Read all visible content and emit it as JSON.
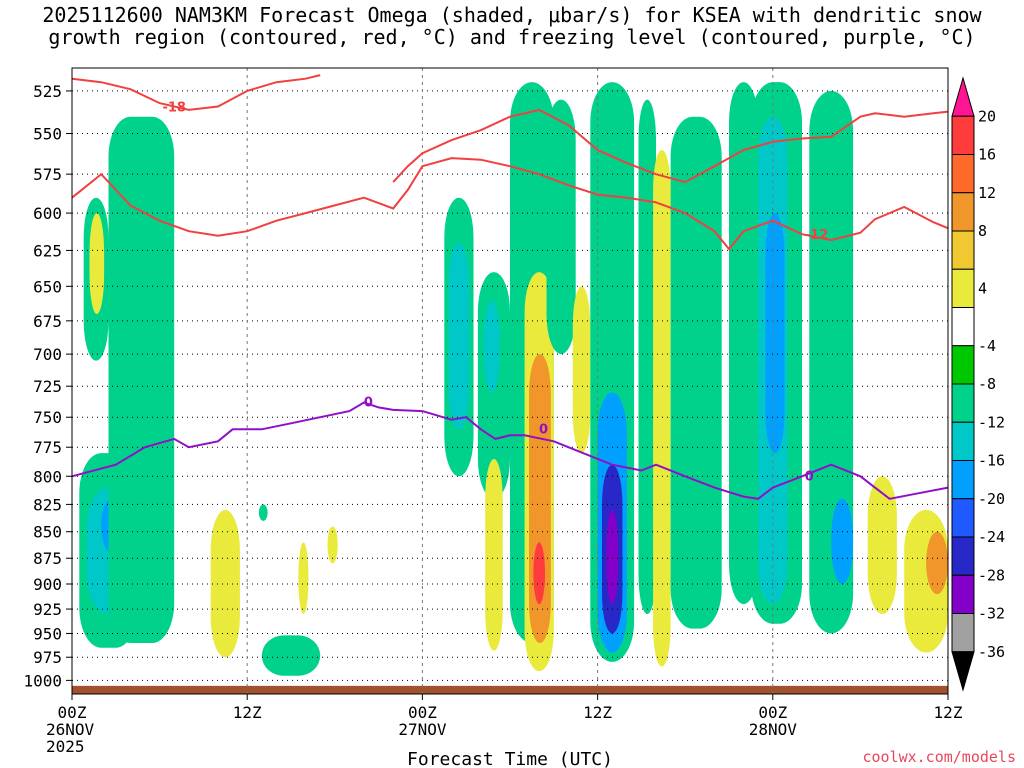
{
  "chart_data": {
    "type": "heatmap",
    "title_line1": "2025112600 NAM3KM Forecast Omega (shaded, μbar/s) for KSEA with dendritic snow",
    "title_line2": "growth region (contoured, red, °C) and freezing level (contoured, purple, °C)",
    "xlabel": "Forecast Time (UTC)",
    "x_ticks": [
      {
        "hour": 0,
        "line1": "00Z",
        "line2": "26NOV",
        "line3": "2025"
      },
      {
        "hour": 12,
        "line1": "12Z",
        "line2": "",
        "line3": ""
      },
      {
        "hour": 24,
        "line1": "00Z",
        "line2": "27NOV",
        "line3": ""
      },
      {
        "hour": 36,
        "line1": "12Z",
        "line2": "",
        "line3": ""
      },
      {
        "hour": 48,
        "line1": "00Z",
        "line2": "28NOV",
        "line3": ""
      },
      {
        "hour": 60,
        "line1": "12Z",
        "line2": "",
        "line3": ""
      }
    ],
    "xlim": [
      0,
      60
    ],
    "ylim_hpa": [
      1015,
      512
    ],
    "y_ticks": [
      "525",
      "550",
      "575",
      "600",
      "625",
      "650",
      "675",
      "700",
      "725",
      "750",
      "775",
      "800",
      "825",
      "850",
      "875",
      "900",
      "925",
      "950",
      "975",
      "1000"
    ],
    "colorbar_ticks": [
      "20",
      "16",
      "12",
      "8",
      "4",
      "-4",
      "-8",
      "-12",
      "-16",
      "-20",
      "-24",
      "-28",
      "-32",
      "-36"
    ],
    "colorbar_colors": [
      "#ff1493",
      "#ff3c3c",
      "#ff6a2a",
      "#f0962a",
      "#f0c832",
      "#eaea3c",
      "#ffffff",
      "#00c800",
      "#00d28c",
      "#00c8c8",
      "#00a0ff",
      "#1e5aff",
      "#2828c8",
      "#8200c8",
      "#a0a0a0",
      "#000000"
    ],
    "omega_cells": [
      {
        "h": [
          0.5,
          4.5
        ],
        "p": [
          780,
          965
        ],
        "v": -8
      },
      {
        "h": [
          1.0,
          4.0
        ],
        "p": [
          810,
          930
        ],
        "v": -12
      },
      {
        "h": [
          2.0,
          3.5
        ],
        "p": [
          820,
          870
        ],
        "v": -16
      },
      {
        "h": [
          2.5,
          7.0
        ],
        "p": [
          540,
          960
        ],
        "v": -8
      },
      {
        "h": [
          0.8,
          2.5
        ],
        "p": [
          590,
          705
        ],
        "v": -8
      },
      {
        "h": [
          1.2,
          2.2
        ],
        "p": [
          600,
          670
        ],
        "v": 6
      },
      {
        "h": [
          9.5,
          11.5
        ],
        "p": [
          830,
          975
        ],
        "v": 6
      },
      {
        "h": [
          12.8,
          13.4
        ],
        "p": [
          825,
          840
        ],
        "v": -8
      },
      {
        "h": [
          13.0,
          17.0
        ],
        "p": [
          952,
          995
        ],
        "v": -8
      },
      {
        "h": [
          15.5,
          16.2
        ],
        "p": [
          860,
          930
        ],
        "v": 6
      },
      {
        "h": [
          17.5,
          18.2
        ],
        "p": [
          845,
          880
        ],
        "v": 6
      },
      {
        "h": [
          25.5,
          27.5
        ],
        "p": [
          590,
          800
        ],
        "v": -8
      },
      {
        "h": [
          25.8,
          27.2
        ],
        "p": [
          620,
          760
        ],
        "v": -12
      },
      {
        "h": [
          27.8,
          30.0
        ],
        "p": [
          640,
          820
        ],
        "v": -8
      },
      {
        "h": [
          28.2,
          29.3
        ],
        "p": [
          660,
          730
        ],
        "v": -12
      },
      {
        "h": [
          28.3,
          29.5
        ],
        "p": [
          785,
          968
        ],
        "v": 6
      },
      {
        "h": [
          30.0,
          33.0
        ],
        "p": [
          520,
          960
        ],
        "v": -8
      },
      {
        "h": [
          31.0,
          33.0
        ],
        "p": [
          640,
          990
        ],
        "v": 6
      },
      {
        "h": [
          31.3,
          32.8
        ],
        "p": [
          700,
          960
        ],
        "v": 10
      },
      {
        "h": [
          31.6,
          32.4
        ],
        "p": [
          860,
          920
        ],
        "v": 18
      },
      {
        "h": [
          32.5,
          34.5
        ],
        "p": [
          530,
          700
        ],
        "v": -8
      },
      {
        "h": [
          34.3,
          35.5
        ],
        "p": [
          650,
          780
        ],
        "v": 6
      },
      {
        "h": [
          35.5,
          38.5
        ],
        "p": [
          520,
          980
        ],
        "v": -8
      },
      {
        "h": [
          36.0,
          38.0
        ],
        "p": [
          730,
          970
        ],
        "v": -16
      },
      {
        "h": [
          36.3,
          37.7
        ],
        "p": [
          790,
          950
        ],
        "v": -24
      },
      {
        "h": [
          36.6,
          37.4
        ],
        "p": [
          830,
          920
        ],
        "v": -30
      },
      {
        "h": [
          38.8,
          40.0
        ],
        "p": [
          530,
          930
        ],
        "v": -8
      },
      {
        "h": [
          39.8,
          41.0
        ],
        "p": [
          560,
          985
        ],
        "v": 6
      },
      {
        "h": [
          41.0,
          44.5
        ],
        "p": [
          540,
          945
        ],
        "v": -8
      },
      {
        "h": [
          45.0,
          47.0
        ],
        "p": [
          520,
          920
        ],
        "v": -8
      },
      {
        "h": [
          46.5,
          50.0
        ],
        "p": [
          520,
          940
        ],
        "v": -8
      },
      {
        "h": [
          47.0,
          49.0
        ],
        "p": [
          540,
          920
        ],
        "v": -12
      },
      {
        "h": [
          47.5,
          48.8
        ],
        "p": [
          600,
          780
        ],
        "v": -16
      },
      {
        "h": [
          50.5,
          53.5
        ],
        "p": [
          525,
          950
        ],
        "v": -8
      },
      {
        "h": [
          52.0,
          53.5
        ],
        "p": [
          820,
          900
        ],
        "v": -16
      },
      {
        "h": [
          54.5,
          56.5
        ],
        "p": [
          800,
          930
        ],
        "v": 6
      },
      {
        "h": [
          57.0,
          60.0
        ],
        "p": [
          830,
          970
        ],
        "v": 6
      },
      {
        "h": [
          58.5,
          60.0
        ],
        "p": [
          850,
          910
        ],
        "v": 10
      }
    ],
    "freezing_level": {
      "label": "0",
      "points": [
        [
          0,
          800
        ],
        [
          3,
          790
        ],
        [
          5,
          775
        ],
        [
          7,
          768
        ],
        [
          8,
          775
        ],
        [
          10,
          770
        ],
        [
          11,
          760
        ],
        [
          13,
          760
        ],
        [
          15,
          755
        ],
        [
          17,
          750
        ],
        [
          19,
          745
        ],
        [
          20,
          738
        ],
        [
          21,
          742
        ],
        [
          22,
          744
        ],
        [
          24,
          745
        ],
        [
          26,
          752
        ],
        [
          27,
          750
        ],
        [
          28,
          760
        ],
        [
          29,
          768
        ],
        [
          30,
          765
        ],
        [
          31,
          765
        ],
        [
          33,
          770
        ],
        [
          35,
          780
        ],
        [
          37,
          790
        ],
        [
          39,
          795
        ],
        [
          40,
          790
        ],
        [
          42,
          800
        ],
        [
          44,
          810
        ],
        [
          46,
          818
        ],
        [
          47,
          820
        ],
        [
          48,
          810
        ],
        [
          50,
          800
        ],
        [
          52,
          790
        ],
        [
          54,
          800
        ],
        [
          55,
          810
        ],
        [
          56,
          820
        ],
        [
          58,
          815
        ],
        [
          60,
          810
        ]
      ]
    },
    "dgz_contours": [
      {
        "label": "-18",
        "points": [
          [
            0,
            518
          ],
          [
            2,
            520
          ],
          [
            4,
            524
          ],
          [
            6,
            532
          ],
          [
            8,
            536
          ],
          [
            10,
            534
          ],
          [
            12,
            525
          ],
          [
            14,
            520
          ],
          [
            16,
            518
          ],
          [
            17,
            516
          ]
        ],
        "label_at": [
          7,
          534
        ]
      },
      {
        "label": "-18",
        "points": [
          [
            22,
            580
          ],
          [
            23,
            570
          ],
          [
            24,
            562
          ],
          [
            26,
            554
          ],
          [
            28,
            548
          ],
          [
            30,
            540
          ],
          [
            32,
            536
          ],
          [
            34,
            545
          ],
          [
            36,
            560
          ],
          [
            38,
            568
          ],
          [
            40,
            575
          ],
          [
            42,
            580
          ],
          [
            44,
            570
          ],
          [
            46,
            560
          ],
          [
            48,
            555
          ],
          [
            50,
            553
          ],
          [
            52,
            552
          ],
          [
            54,
            540
          ],
          [
            55,
            538
          ],
          [
            57,
            540
          ],
          [
            59,
            538
          ],
          [
            60,
            537
          ]
        ]
      },
      {
        "label": "-12",
        "points": [
          [
            0,
            590
          ],
          [
            2,
            575
          ],
          [
            4,
            595
          ],
          [
            6,
            605
          ],
          [
            8,
            612
          ],
          [
            10,
            615
          ],
          [
            12,
            612
          ],
          [
            14,
            605
          ],
          [
            16,
            600
          ],
          [
            18,
            595
          ],
          [
            20,
            590
          ],
          [
            22,
            597
          ],
          [
            23,
            585
          ],
          [
            24,
            570
          ],
          [
            26,
            565
          ],
          [
            28,
            566
          ],
          [
            30,
            570
          ],
          [
            32,
            575
          ],
          [
            34,
            582
          ],
          [
            36,
            588
          ],
          [
            38,
            590
          ],
          [
            40,
            593
          ],
          [
            42,
            600
          ],
          [
            44,
            612
          ],
          [
            45,
            624
          ],
          [
            46,
            612
          ],
          [
            48,
            605
          ],
          [
            50,
            614
          ],
          [
            52,
            618
          ],
          [
            54,
            613
          ],
          [
            55,
            604
          ],
          [
            57,
            596
          ],
          [
            59,
            606
          ],
          [
            60,
            610
          ]
        ],
        "label_at": [
          51,
          614
        ]
      }
    ],
    "terrain_color": "#a0522d"
  },
  "credit": "coolwx.com/models"
}
